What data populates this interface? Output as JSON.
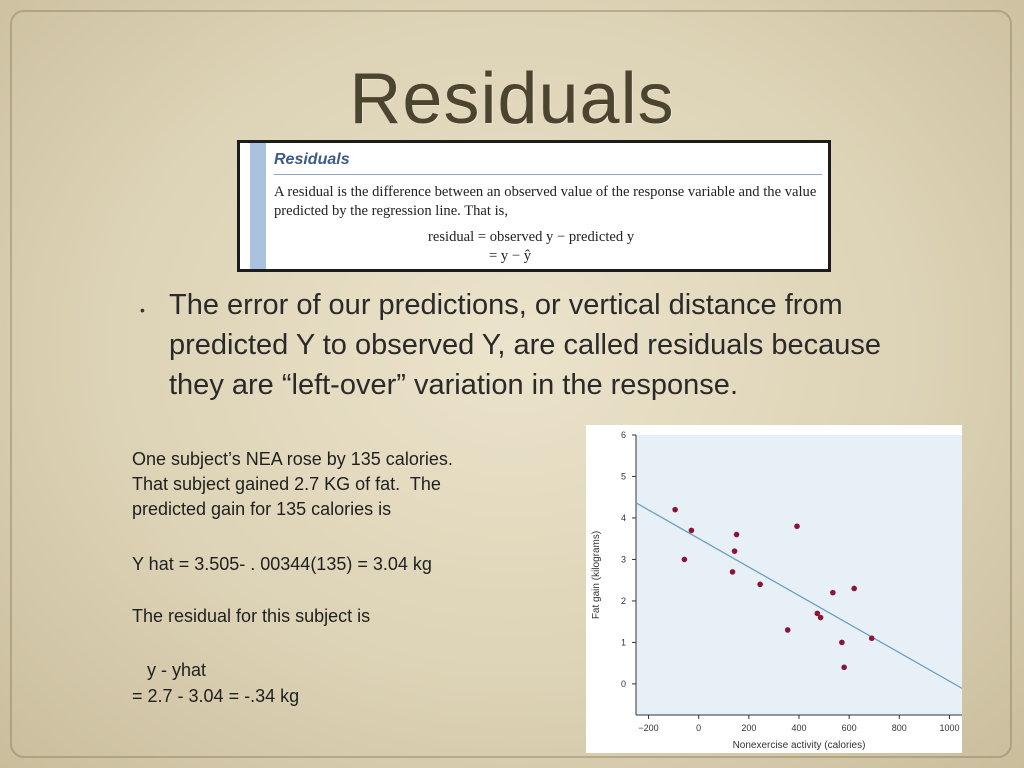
{
  "slide": {
    "title": "Residuals",
    "definition_box": {
      "heading": "Residuals",
      "text": "A residual is the difference between an observed value of the response variable and the value predicted by the regression line. That is,",
      "equation_line1": "residual = observed y − predicted y",
      "equation_line2": "= y − ŷ"
    },
    "bullet": "The error of our predictions, or vertical distance from predicted Y to observed Y, are called residuals because they are “left-over” variation in the response.",
    "body_lines": [
      "One subject’s NEA rose by 135 calories.",
      "That subject gained 2.7 KG of fat.  The",
      "predicted gain for 135 calories is",
      "",
      "Y hat = 3.505- . 00344(135) = 3.04 kg",
      "",
      "The residual for this subject is",
      "",
      "   y - yhat",
      "= 2.7 - 3.04 = -.34 kg"
    ]
  },
  "chart_data": {
    "type": "scatter",
    "xlabel": "Nonexercise activity (calories)",
    "ylabel": "Fat gain (kilograms)",
    "xlim": [
      -250,
      1050
    ],
    "ylim": [
      -0.75,
      6
    ],
    "x_ticks": [
      "−200",
      "0",
      "200",
      "400",
      "600",
      "800",
      "1000"
    ],
    "y_ticks": [
      "0",
      "1",
      "2",
      "3",
      "4",
      "5",
      "6"
    ],
    "points": [
      {
        "x": -94,
        "y": 4.2
      },
      {
        "x": -57,
        "y": 3.0
      },
      {
        "x": -29,
        "y": 3.7
      },
      {
        "x": 135,
        "y": 2.7
      },
      {
        "x": 143,
        "y": 3.2
      },
      {
        "x": 151,
        "y": 3.6
      },
      {
        "x": 245,
        "y": 2.4
      },
      {
        "x": 355,
        "y": 1.3
      },
      {
        "x": 392,
        "y": 3.8
      },
      {
        "x": 473,
        "y": 1.7
      },
      {
        "x": 486,
        "y": 1.6
      },
      {
        "x": 535,
        "y": 2.2
      },
      {
        "x": 571,
        "y": 1.0
      },
      {
        "x": 580,
        "y": 0.4
      },
      {
        "x": 620,
        "y": 2.3
      },
      {
        "x": 690,
        "y": 1.1
      }
    ],
    "regression_line": {
      "intercept": 3.505,
      "slope": -0.00344
    },
    "colors": {
      "points": "#8a1538",
      "line": "#6e9fbf",
      "axes": "#333333"
    }
  }
}
